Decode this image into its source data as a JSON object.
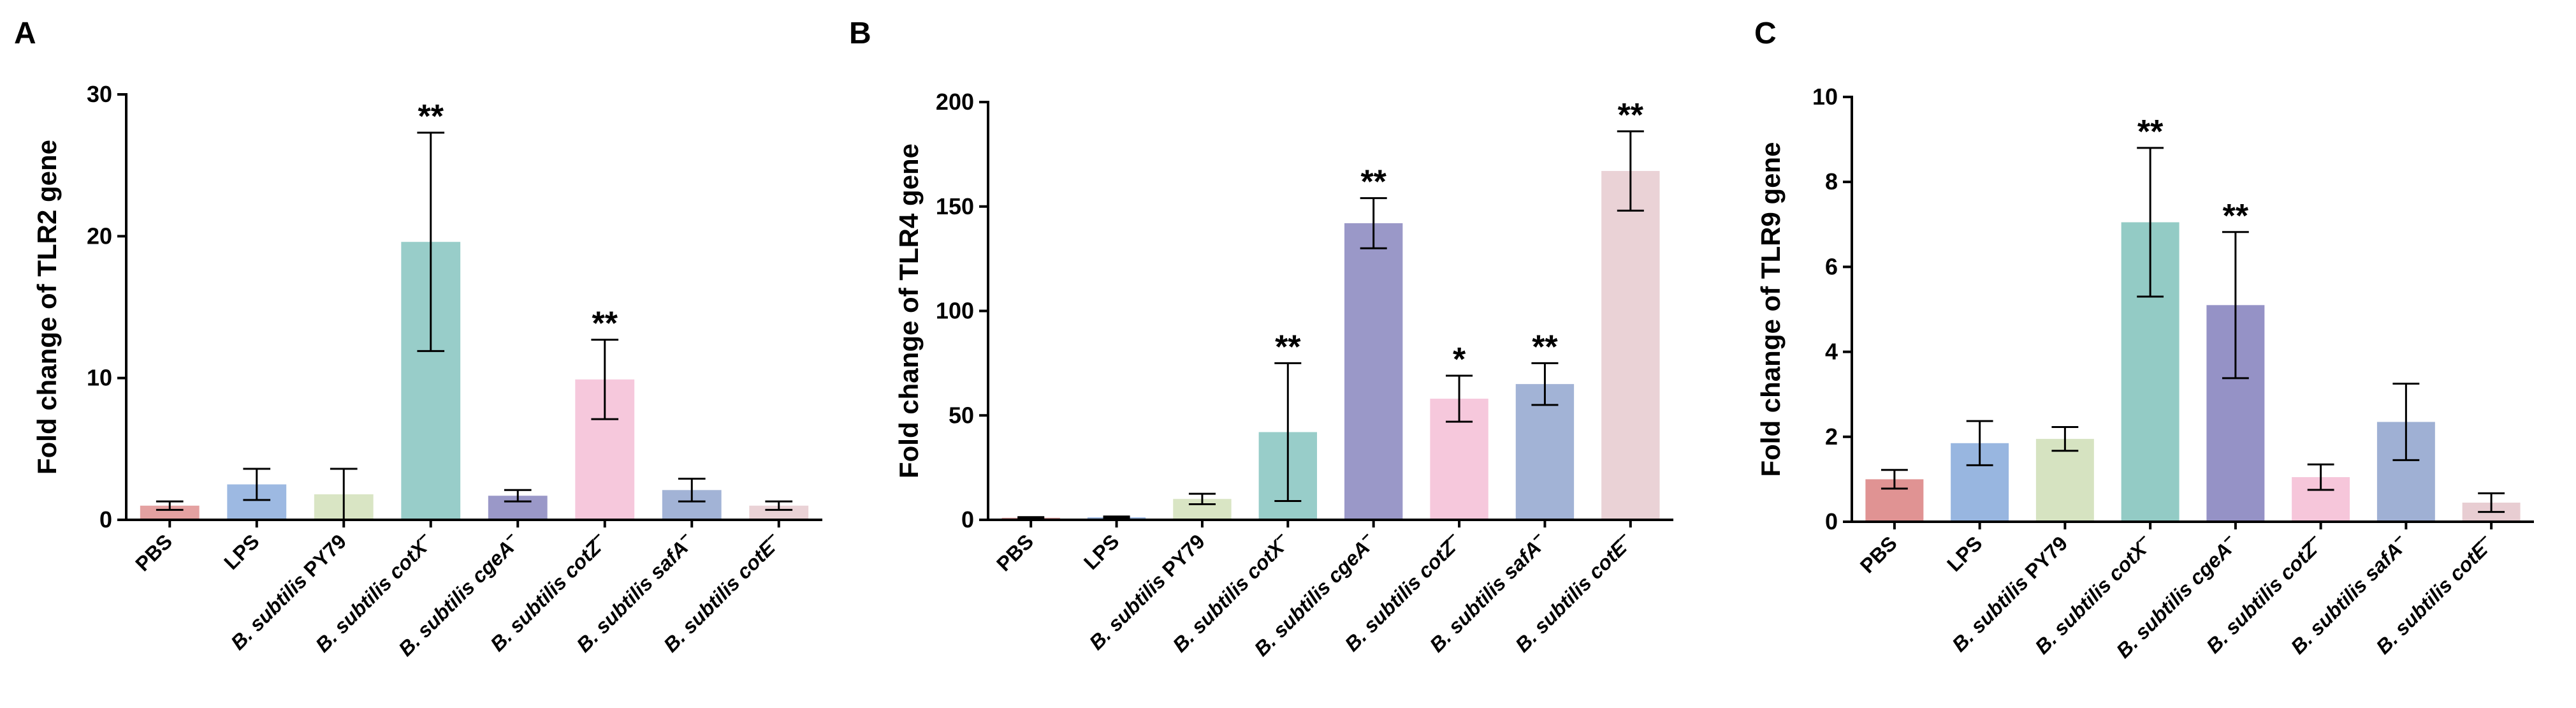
{
  "chart_data": [
    {
      "type": "bar",
      "panel_label": "A",
      "ylabel": "Fold change of TLR2 gene",
      "ylim": [
        0,
        30
      ],
      "yticks": [
        0,
        10,
        20,
        30
      ],
      "categories": [
        {
          "label": "PBS",
          "italic_prefix": "",
          "italic": false,
          "suffix": ""
        },
        {
          "label": "LPS",
          "italic_prefix": "",
          "italic": false,
          "suffix": ""
        },
        {
          "label": "B. subtilis PY79",
          "italic_prefix": "B. subtilis",
          "italic": true,
          "suffix": " PY79"
        },
        {
          "label": "B. subtilis cotX−",
          "italic_prefix": "B. subtilis cotX",
          "italic": true,
          "suffix": "−"
        },
        {
          "label": "B. subtilis cgeA−",
          "italic_prefix": "B. subtilis cgeA",
          "italic": true,
          "suffix": "−"
        },
        {
          "label": "B. subtilis cotZ−",
          "italic_prefix": "B. subtilis cotZ",
          "italic": true,
          "suffix": "−"
        },
        {
          "label": "B. subtilis safA−",
          "italic_prefix": "B. subtilis safA",
          "italic": true,
          "suffix": "−"
        },
        {
          "label": "B. subtilis cotE−",
          "italic_prefix": "B. subtilis cotE",
          "italic": true,
          "suffix": "−"
        }
      ],
      "values": [
        1.0,
        2.5,
        1.8,
        19.6,
        1.7,
        9.9,
        2.1,
        1.0
      ],
      "errors": [
        0.3,
        1.1,
        1.8,
        7.7,
        0.4,
        2.8,
        0.8,
        0.3
      ],
      "significance": [
        "",
        "",
        "",
        "**",
        "",
        "**",
        "",
        ""
      ],
      "colors": [
        "#e4a1a1",
        "#9db9e2",
        "#d9e5c4",
        "#98cdc9",
        "#9a98c8",
        "#f6c8dc",
        "#a2b3d6",
        "#ead2d6"
      ]
    },
    {
      "type": "bar",
      "panel_label": "B",
      "ylabel": "Fold change of TLR4 gene",
      "ylim": [
        0,
        200
      ],
      "yticks": [
        0,
        50,
        100,
        150,
        200
      ],
      "categories": [
        {
          "label": "PBS",
          "italic_prefix": "",
          "italic": false,
          "suffix": ""
        },
        {
          "label": "LPS",
          "italic_prefix": "",
          "italic": false,
          "suffix": ""
        },
        {
          "label": "B. subtilis PY79",
          "italic_prefix": "B. subtilis",
          "italic": true,
          "suffix": " PY79"
        },
        {
          "label": "B. subtilis cotX−",
          "italic_prefix": "B. subtilis cotX",
          "italic": true,
          "suffix": "−"
        },
        {
          "label": "B. subtilis cgeA−",
          "italic_prefix": "B. subtilis cgeA",
          "italic": true,
          "suffix": "−"
        },
        {
          "label": "B. subtilis cotZ−",
          "italic_prefix": "B. subtilis cotZ",
          "italic": true,
          "suffix": "−"
        },
        {
          "label": "B. subtilis safA−",
          "italic_prefix": "B. subtilis safA",
          "italic": true,
          "suffix": "−"
        },
        {
          "label": "B. subtilis cotE−",
          "italic_prefix": "B. subtilis cotE",
          "italic": true,
          "suffix": "−"
        }
      ],
      "values": [
        1.0,
        1.2,
        10,
        42,
        142,
        58,
        65,
        167
      ],
      "errors": [
        0.3,
        0.4,
        2.5,
        33,
        12,
        11,
        10,
        19
      ],
      "significance": [
        "",
        "",
        "",
        "**",
        "**",
        "*",
        "**",
        "**"
      ],
      "colors": [
        "#e4a1a1",
        "#9db9e2",
        "#d9e5c4",
        "#98cdc9",
        "#9a98c8",
        "#f6c8dc",
        "#a2b3d6",
        "#ead2d6"
      ]
    },
    {
      "type": "bar",
      "panel_label": "C",
      "ylabel": "Fold change of TLR9 gene",
      "ylim": [
        0,
        10
      ],
      "yticks": [
        0,
        2,
        4,
        6,
        8,
        10
      ],
      "categories": [
        {
          "label": "PBS",
          "italic_prefix": "",
          "italic": false,
          "suffix": ""
        },
        {
          "label": "LPS",
          "italic_prefix": "",
          "italic": false,
          "suffix": ""
        },
        {
          "label": "B. subtilis PY79",
          "italic_prefix": "B. subtilis",
          "italic": true,
          "suffix": " PY79"
        },
        {
          "label": "B. subtilis cotX−",
          "italic_prefix": "B. subtilis cotX",
          "italic": true,
          "suffix": "−"
        },
        {
          "label": "B. subtilis cgeA−",
          "italic_prefix": "B. subtilis cgeA",
          "italic": true,
          "suffix": "−"
        },
        {
          "label": "B. subtilis cotZ−",
          "italic_prefix": "B. subtilis cotZ",
          "italic": true,
          "suffix": "−"
        },
        {
          "label": "B. subtilis safA−",
          "italic_prefix": "B. subtilis safA",
          "italic": true,
          "suffix": "−"
        },
        {
          "label": "B. subtilis cotE−",
          "italic_prefix": "B. subtilis cotE",
          "italic": true,
          "suffix": "−"
        }
      ],
      "values": [
        1.0,
        1.85,
        1.95,
        7.05,
        5.1,
        1.05,
        2.35,
        0.45
      ],
      "errors": [
        0.22,
        0.52,
        0.28,
        1.75,
        1.72,
        0.3,
        0.9,
        0.22
      ],
      "significance": [
        "",
        "",
        "",
        "**",
        "**",
        "",
        "",
        ""
      ],
      "colors": [
        "#e09393",
        "#98b6e0",
        "#d6e3c1",
        "#93cbc5",
        "#9592c6",
        "#f6c6da",
        "#9fb0d4",
        "#e8cdd2"
      ]
    }
  ]
}
